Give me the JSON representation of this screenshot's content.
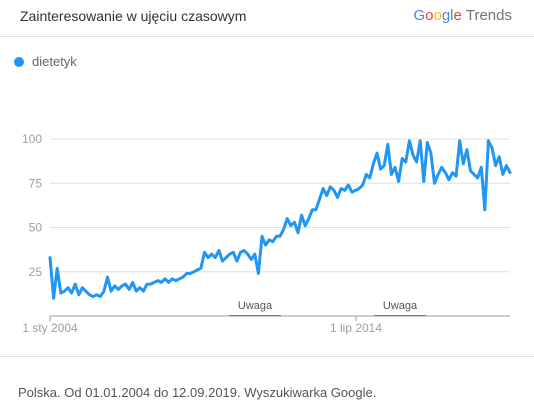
{
  "header": {
    "title": "Zainteresowanie w ujęciu czasowym",
    "brand_google": "Google",
    "brand_trends": "Trends"
  },
  "footer": {
    "text": "Polska. Od 01.01.2004 do 12.09.2019. Wyszukiwarka Google."
  },
  "colors": {
    "series": "#2196f3",
    "grid": "#e0e0e0",
    "axis_text": "#9e9e9e"
  },
  "chart_data": {
    "type": "line",
    "x_tick_labels": [
      "1 sty 2004",
      "1 lip 2014"
    ],
    "y_ticks": [
      25,
      50,
      75,
      100
    ],
    "ylim": [
      0,
      100
    ],
    "annotations": [
      "Uwaga",
      "Uwaga"
    ],
    "series": [
      {
        "name": "dietetyk",
        "values": [
          33,
          10,
          27,
          13,
          14,
          16,
          13,
          18,
          12,
          16,
          14,
          12,
          11,
          12,
          11,
          14,
          22,
          14,
          17,
          15,
          17,
          18,
          15,
          19,
          14,
          16,
          14,
          18,
          18,
          19,
          20,
          19,
          21,
          19,
          21,
          20,
          21,
          22,
          24,
          24,
          25,
          26,
          27,
          36,
          33,
          35,
          33,
          37,
          31,
          33,
          35,
          36,
          31,
          36,
          37,
          35,
          32,
          35,
          24,
          45,
          40,
          43,
          42,
          45,
          45,
          49,
          55,
          51,
          53,
          47,
          57,
          51,
          55,
          60,
          60,
          66,
          72,
          68,
          73,
          71,
          67,
          72,
          71,
          74,
          70,
          71,
          72,
          74,
          80,
          78,
          86,
          92,
          83,
          85,
          97,
          80,
          84,
          76,
          89,
          87,
          99,
          91,
          87,
          99,
          76,
          98,
          92,
          75,
          80,
          84,
          81,
          77,
          81,
          79,
          99,
          86,
          94,
          82,
          80,
          78,
          84,
          60,
          99,
          95,
          85,
          90,
          80,
          85,
          81
        ]
      }
    ]
  }
}
